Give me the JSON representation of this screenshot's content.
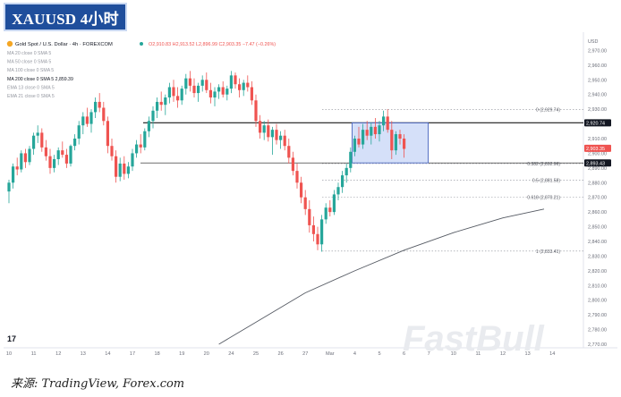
{
  "title_badge": "XAUUSD 4小时",
  "source": "来源: TradingView, Forex.com",
  "watermark": "FastBull",
  "colors": {
    "up": "#26a69a",
    "down": "#ef5350",
    "box_fill": "#c7d6f7",
    "box_stroke": "#3a57b8",
    "badge": "#1f4e9c"
  },
  "chart_data": {
    "type": "candlestick",
    "symbol_header": "Gold Spot / U.S. Dollar · 4h · FOREXCOM",
    "ohlc_header": "O2,910.83 H2,913.52 L2,896.99 C2,903.35 −7.47 (−0.26%)",
    "currency": "USD",
    "indicators": [
      "MA 20 close 0 SMA 5",
      "MA 50 close 0 SMA 5",
      "MA 100 close 0 SMA 5",
      "MA 200 close 0 SMA 5  2,859.39",
      "EMA 13 close 0 SMA 5",
      "EMA 21 close 0 SMA 5"
    ],
    "ylim": [
      2770,
      2980
    ],
    "y_ticks": [
      2770,
      2780,
      2790,
      2800,
      2810,
      2820,
      2830,
      2840,
      2850,
      2860,
      2870,
      2880,
      2890,
      2900,
      2910,
      2920,
      2930,
      2940,
      2950,
      2960,
      2970
    ],
    "x_labels": [
      "10",
      "11",
      "12",
      "13",
      "14",
      "17",
      "18",
      "19",
      "20",
      "24",
      "25",
      "26",
      "27",
      "Mar",
      "4",
      "5",
      "6",
      "7",
      "10",
      "11",
      "12",
      "13",
      "14"
    ],
    "x_label_idx": [
      0,
      6,
      12,
      18,
      24,
      30,
      36,
      42,
      48,
      54,
      60,
      66,
      72,
      78,
      84,
      90,
      96,
      102,
      108,
      114,
      120,
      126,
      132
    ],
    "candles": [
      [
        2874,
        2882,
        2866,
        2880
      ],
      [
        2880,
        2893,
        2876,
        2891
      ],
      [
        2891,
        2897,
        2885,
        2889
      ],
      [
        2889,
        2902,
        2887,
        2900
      ],
      [
        2900,
        2903,
        2890,
        2894
      ],
      [
        2894,
        2905,
        2892,
        2903
      ],
      [
        2903,
        2914,
        2899,
        2912
      ],
      [
        2912,
        2919,
        2907,
        2914
      ],
      [
        2914,
        2917,
        2901,
        2904
      ],
      [
        2904,
        2909,
        2895,
        2898
      ],
      [
        2898,
        2903,
        2886,
        2890
      ],
      [
        2890,
        2899,
        2887,
        2896
      ],
      [
        2896,
        2904,
        2892,
        2902
      ],
      [
        2902,
        2908,
        2897,
        2899
      ],
      [
        2899,
        2903,
        2890,
        2893
      ],
      [
        2893,
        2906,
        2891,
        2905
      ],
      [
        2905,
        2913,
        2902,
        2910
      ],
      [
        2910,
        2922,
        2906,
        2919
      ],
      [
        2919,
        2928,
        2913,
        2925
      ],
      [
        2925,
        2931,
        2918,
        2920
      ],
      [
        2920,
        2930,
        2914,
        2928
      ],
      [
        2928,
        2938,
        2924,
        2935
      ],
      [
        2935,
        2941,
        2928,
        2931
      ],
      [
        2931,
        2935,
        2919,
        2922
      ],
      [
        2922,
        2925,
        2900,
        2905
      ],
      [
        2905,
        2910,
        2895,
        2898
      ],
      [
        2898,
        2902,
        2880,
        2884
      ],
      [
        2884,
        2897,
        2881,
        2893
      ],
      [
        2893,
        2898,
        2882,
        2886
      ],
      [
        2886,
        2894,
        2883,
        2891
      ],
      [
        2891,
        2903,
        2888,
        2900
      ],
      [
        2900,
        2909,
        2897,
        2906
      ],
      [
        2906,
        2913,
        2900,
        2904
      ],
      [
        2904,
        2917,
        2902,
        2915
      ],
      [
        2915,
        2925,
        2911,
        2922
      ],
      [
        2922,
        2932,
        2917,
        2929
      ],
      [
        2929,
        2938,
        2924,
        2935
      ],
      [
        2935,
        2942,
        2929,
        2933
      ],
      [
        2933,
        2940,
        2926,
        2938
      ],
      [
        2938,
        2948,
        2934,
        2945
      ],
      [
        2945,
        2950,
        2935,
        2939
      ],
      [
        2939,
        2945,
        2931,
        2936
      ],
      [
        2936,
        2946,
        2933,
        2944
      ],
      [
        2944,
        2954,
        2940,
        2951
      ],
      [
        2951,
        2956,
        2942,
        2946
      ],
      [
        2946,
        2951,
        2938,
        2941
      ],
      [
        2941,
        2948,
        2935,
        2946
      ],
      [
        2946,
        2953,
        2942,
        2950
      ],
      [
        2950,
        2955,
        2941,
        2943
      ],
      [
        2943,
        2948,
        2934,
        2938
      ],
      [
        2938,
        2945,
        2932,
        2942
      ],
      [
        2942,
        2947,
        2937,
        2945
      ],
      [
        2945,
        2949,
        2938,
        2940
      ],
      [
        2940,
        2946,
        2936,
        2944
      ],
      [
        2944,
        2956,
        2941,
        2953
      ],
      [
        2953,
        2955,
        2944,
        2947
      ],
      [
        2947,
        2951,
        2938,
        2943
      ],
      [
        2943,
        2950,
        2939,
        2948
      ],
      [
        2948,
        2953,
        2942,
        2945
      ],
      [
        2945,
        2949,
        2933,
        2936
      ],
      [
        2936,
        2940,
        2918,
        2922
      ],
      [
        2922,
        2926,
        2910,
        2914
      ],
      [
        2914,
        2922,
        2909,
        2919
      ],
      [
        2919,
        2923,
        2908,
        2911
      ],
      [
        2911,
        2918,
        2899,
        2916
      ],
      [
        2916,
        2920,
        2906,
        2909
      ],
      [
        2909,
        2915,
        2903,
        2912
      ],
      [
        2912,
        2916,
        2902,
        2905
      ],
      [
        2905,
        2910,
        2893,
        2897
      ],
      [
        2897,
        2901,
        2885,
        2888
      ],
      [
        2888,
        2893,
        2876,
        2880
      ],
      [
        2880,
        2884,
        2866,
        2870
      ],
      [
        2870,
        2875,
        2858,
        2862
      ],
      [
        2862,
        2868,
        2846,
        2851
      ],
      [
        2851,
        2857,
        2840,
        2845
      ],
      [
        2845,
        2850,
        2834,
        2838
      ],
      [
        2838,
        2858,
        2833,
        2855
      ],
      [
        2855,
        2866,
        2852,
        2863
      ],
      [
        2863,
        2868,
        2857,
        2860
      ],
      [
        2860,
        2875,
        2858,
        2872
      ],
      [
        2872,
        2880,
        2868,
        2877
      ],
      [
        2877,
        2888,
        2873,
        2885
      ],
      [
        2885,
        2893,
        2880,
        2890
      ],
      [
        2890,
        2904,
        2887,
        2901
      ],
      [
        2901,
        2912,
        2898,
        2910
      ],
      [
        2910,
        2918,
        2904,
        2906
      ],
      [
        2906,
        2920,
        2903,
        2916
      ],
      [
        2916,
        2922,
        2909,
        2912
      ],
      [
        2912,
        2921,
        2906,
        2918
      ],
      [
        2918,
        2924,
        2910,
        2913
      ],
      [
        2913,
        2922,
        2908,
        2919
      ],
      [
        2919,
        2929,
        2915,
        2925
      ],
      [
        2925,
        2930,
        2914,
        2916
      ],
      [
        2916,
        2922,
        2896,
        2902
      ],
      [
        2902,
        2915,
        2899,
        2913
      ],
      [
        2913,
        2916,
        2906,
        2910
      ],
      [
        2910,
        2913,
        2897,
        2903
      ]
    ],
    "horizontal_lines": [
      {
        "value": 2920.74,
        "label": "2,920.74",
        "style": "solid"
      },
      {
        "value": 2893.43,
        "label": "2,893.43",
        "style": "solid"
      }
    ],
    "price_tags": [
      {
        "value": 2920.74,
        "label": "2,920.74",
        "bg": "#131722"
      },
      {
        "value": 2903.35,
        "label": "2,903.35",
        "bg": "#ef5350"
      },
      {
        "value": 2893.43,
        "label": "2,893.43",
        "bg": "#131722"
      }
    ],
    "fibonacci": [
      {
        "value": 2929.74,
        "label": "0 (2,929.74)"
      },
      {
        "value": 2892.96,
        "label": "0.382 (2,892.96)"
      },
      {
        "value": 2881.58,
        "label": "0.5 (2,881.58)"
      },
      {
        "value": 2870.21,
        "label": "0.618 (2,870.21)"
      },
      {
        "value": 2833.41,
        "label": "1 (2,833.41)"
      }
    ],
    "box": {
      "from_idx": 84,
      "to_idx": 101,
      "high": 2920.74,
      "low": 2893.43
    },
    "ma200_line": [
      [
        51,
        2770
      ],
      [
        60,
        2785
      ],
      [
        72,
        2805
      ],
      [
        84,
        2820
      ],
      [
        96,
        2834
      ],
      [
        108,
        2846
      ],
      [
        120,
        2856
      ],
      [
        130,
        2862
      ]
    ]
  }
}
